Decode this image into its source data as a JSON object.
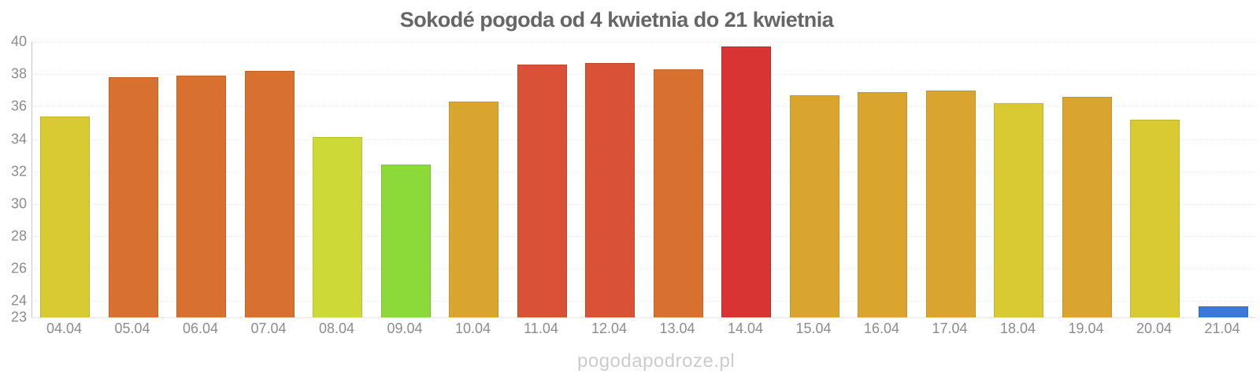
{
  "title": "Sokodé pogoda od 4 kwietnia do 21 kwietnia",
  "watermark": "pogodapodroze.pl",
  "chart_data": {
    "type": "bar",
    "title": "Sokodé pogoda od 4 kwietnia do 21 kwietnia",
    "xlabel": "",
    "ylabel": "",
    "categories": [
      "04.04",
      "05.04",
      "06.04",
      "07.04",
      "08.04",
      "09.04",
      "10.04",
      "11.04",
      "12.04",
      "13.04",
      "14.04",
      "15.04",
      "16.04",
      "17.04",
      "18.04",
      "19.04",
      "20.04",
      "21.04"
    ],
    "values": [
      35.4,
      37.8,
      37.9,
      38.2,
      34.1,
      32.4,
      36.3,
      38.6,
      38.7,
      38.3,
      39.7,
      36.7,
      36.9,
      37.0,
      36.2,
      36.6,
      35.2,
      23.7
    ],
    "bar_colors": [
      "#d9c933",
      "#d8702f",
      "#d8702f",
      "#d8702f",
      "#ccd936",
      "#8cd93a",
      "#d9a52f",
      "#d95136",
      "#d95136",
      "#d8702f",
      "#d93434",
      "#d9a52f",
      "#d9a52f",
      "#d9a52f",
      "#d9c933",
      "#d9a52f",
      "#d9c933",
      "#3b78d9"
    ],
    "ylim": [
      23,
      40
    ],
    "yticks": [
      40,
      38,
      36,
      34,
      32,
      30,
      28,
      26,
      24,
      23
    ],
    "grid": true,
    "legend": "none",
    "colors": {
      "axis": "#c9c9c9",
      "grid": "#ececec",
      "tick_labels": "#8c8c8c",
      "title": "#666666",
      "watermark": "#cccccc"
    }
  }
}
